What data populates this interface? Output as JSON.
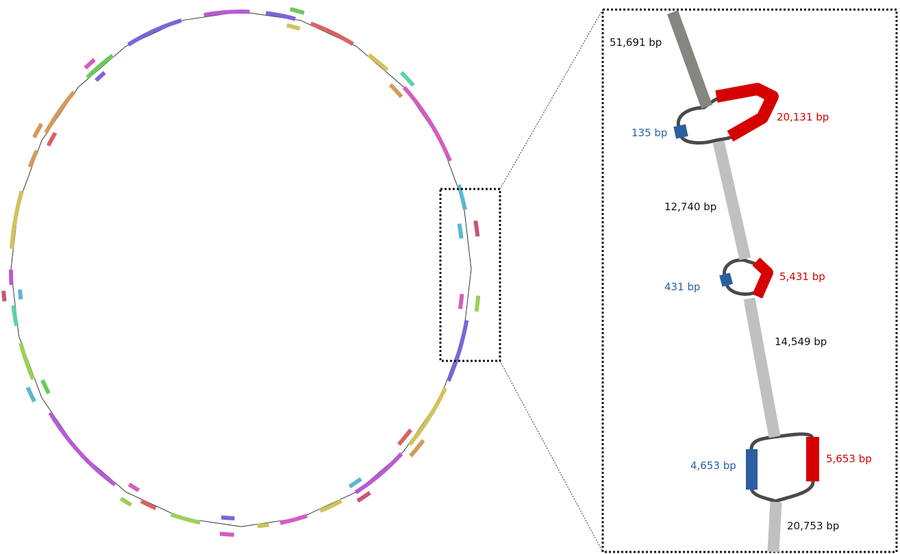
{
  "colors": {
    "gray_dark": "#858581",
    "gray_light": "#c0c0c0",
    "red": "#d60000",
    "blue": "#2b5fa0",
    "link": "#4a4a4a",
    "black": "#111111"
  },
  "zoom_panel": {
    "segments": [
      {
        "id": "seg-a",
        "text": "51,691 bp",
        "color_key": "gray_dark"
      },
      {
        "id": "seg-b",
        "text": "20,131 bp",
        "color_key": "red"
      },
      {
        "id": "seg-c",
        "text": "135 bp",
        "color_key": "blue"
      },
      {
        "id": "seg-d",
        "text": "12,740 bp",
        "color_key": "gray_light"
      },
      {
        "id": "seg-e",
        "text": "431 bp",
        "color_key": "blue"
      },
      {
        "id": "seg-f",
        "text": "5,431 bp",
        "color_key": "red"
      },
      {
        "id": "seg-g",
        "text": "14,549 bp",
        "color_key": "gray_light"
      },
      {
        "id": "seg-h",
        "text": "4,653 bp",
        "color_key": "blue"
      },
      {
        "id": "seg-i",
        "text": "5,653 bp",
        "color_key": "red"
      },
      {
        "id": "seg-j",
        "text": "20,753 bp",
        "color_key": "gray_light"
      }
    ]
  }
}
